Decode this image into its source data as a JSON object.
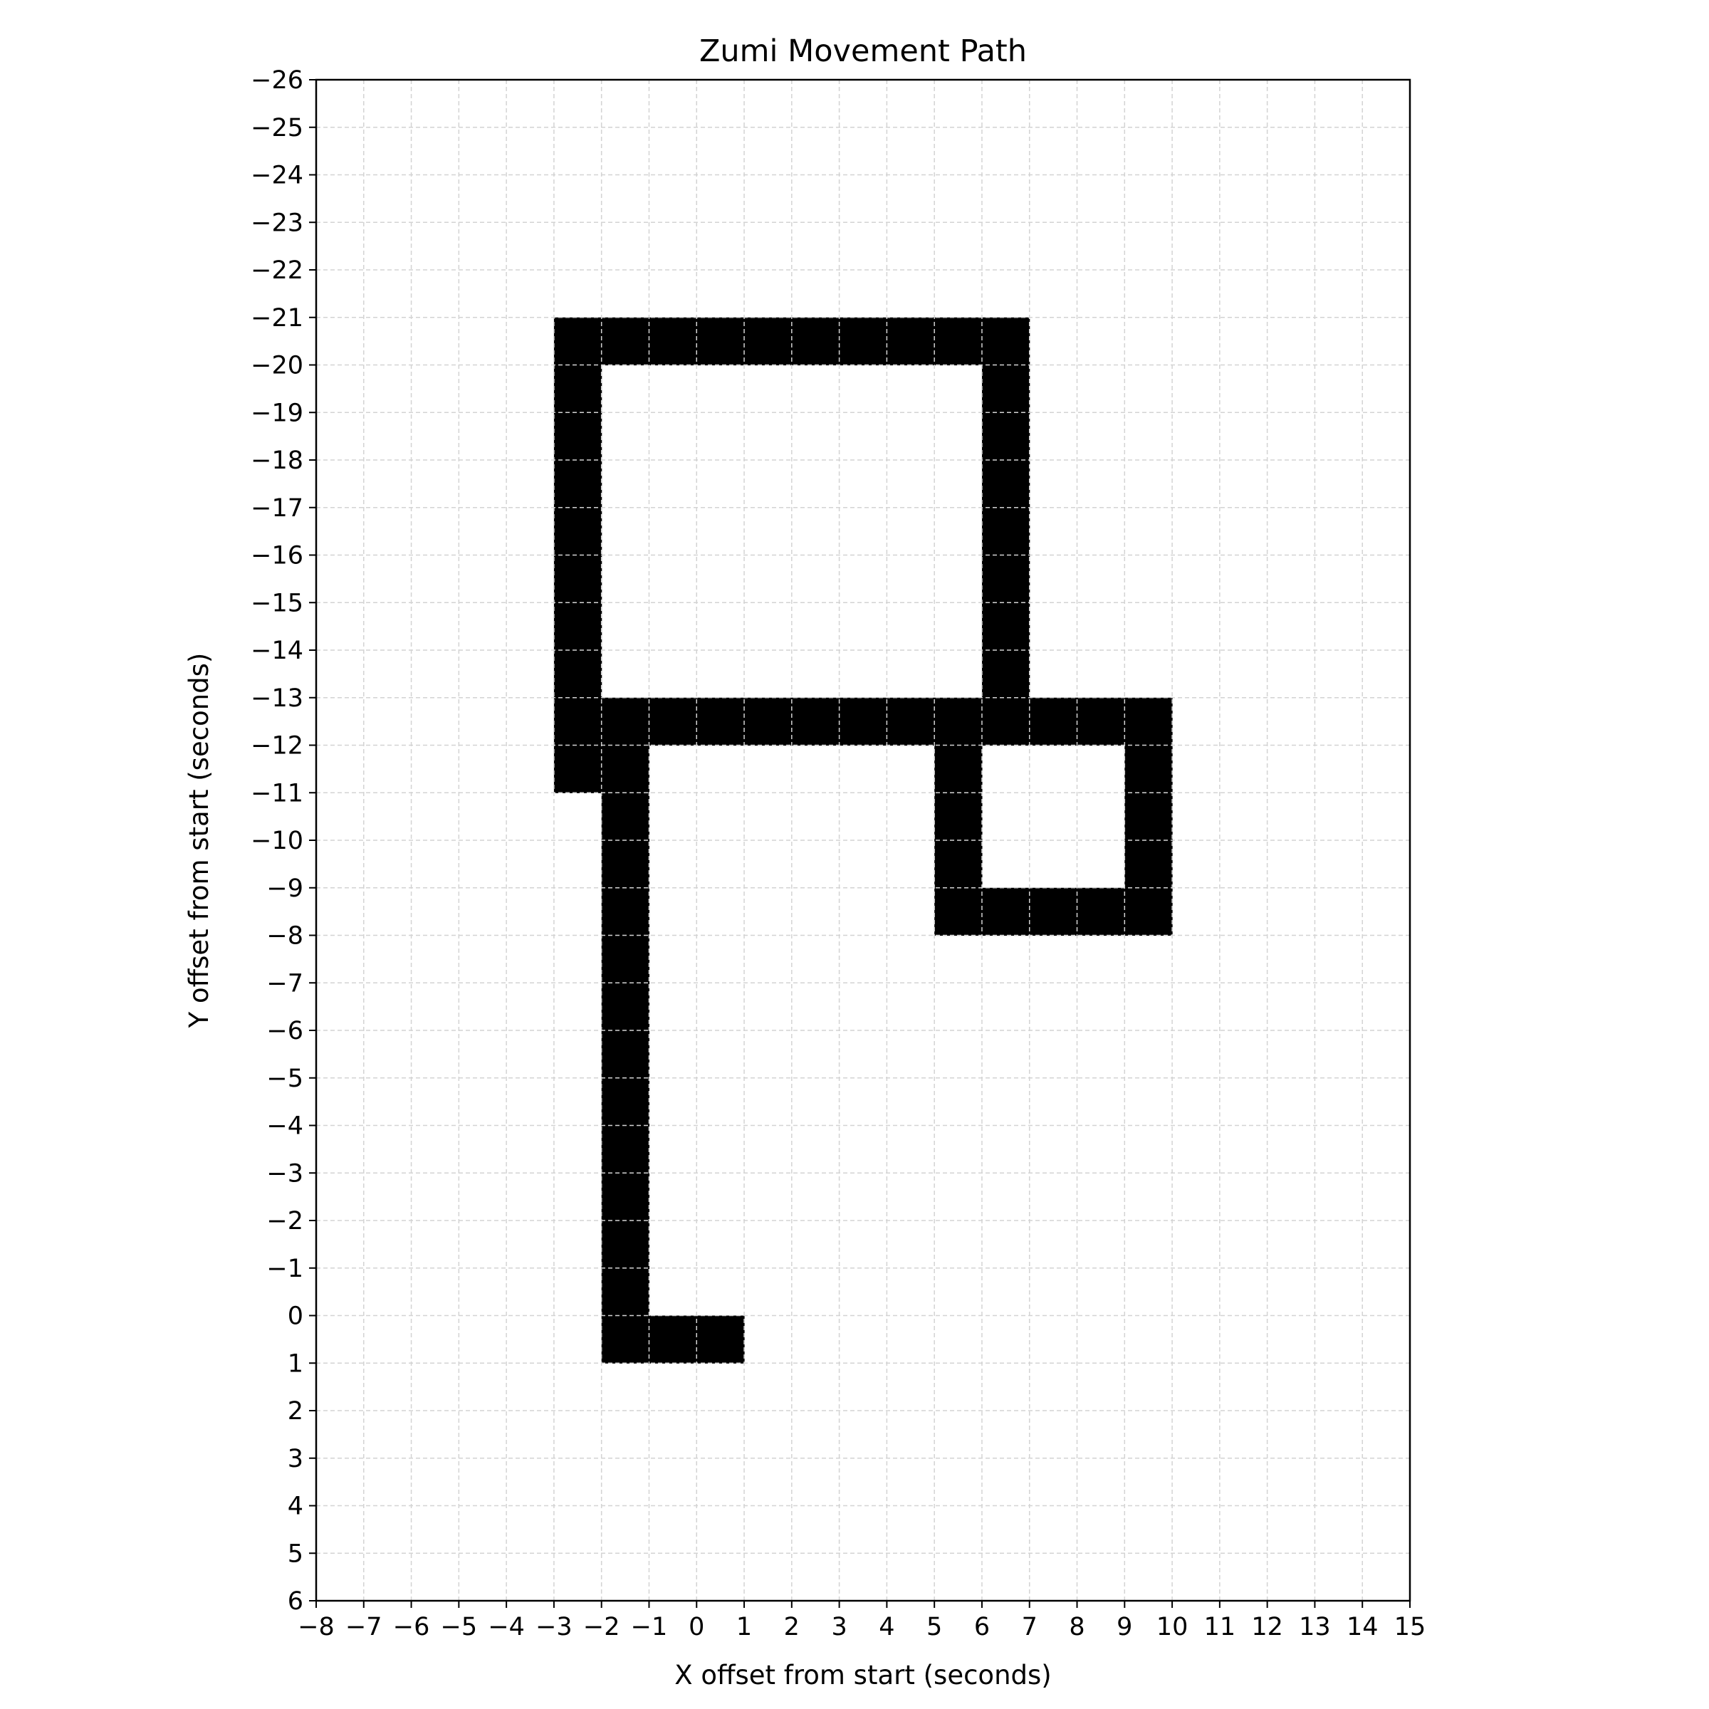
{
  "chart_data": {
    "type": "heatmap",
    "title": "Zumi Movement Path",
    "xlabel": "X offset from start (seconds)",
    "ylabel": "Y offset from start (seconds)",
    "xlim": [
      -8,
      15
    ],
    "ylim": [
      -26,
      6
    ],
    "y_inverted": true,
    "grid": true,
    "xticks": [
      "−8",
      "−7",
      "−6",
      "−5",
      "−4",
      "−3",
      "−2",
      "−1",
      "0",
      "1",
      "2",
      "3",
      "4",
      "5",
      "6",
      "7",
      "8",
      "9",
      "10",
      "11",
      "12",
      "13",
      "14",
      "15"
    ],
    "yticks": [
      "−26",
      "−25",
      "−24",
      "−23",
      "−22",
      "−21",
      "−20",
      "−19",
      "−18",
      "−17",
      "−16",
      "−15",
      "−14",
      "−13",
      "−12",
      "−11",
      "−10",
      "−9",
      "−8",
      "−7",
      "−6",
      "−5",
      "−4",
      "−3",
      "−2",
      "−1",
      "0",
      "1",
      "2",
      "3",
      "4",
      "5",
      "6"
    ],
    "visited_cells": [
      [
        -3,
        -21
      ],
      [
        -2,
        -21
      ],
      [
        -1,
        -21
      ],
      [
        0,
        -21
      ],
      [
        1,
        -21
      ],
      [
        2,
        -21
      ],
      [
        3,
        -21
      ],
      [
        4,
        -21
      ],
      [
        5,
        -21
      ],
      [
        6,
        -21
      ],
      [
        -3,
        -20
      ],
      [
        -3,
        -19
      ],
      [
        -3,
        -18
      ],
      [
        -3,
        -17
      ],
      [
        -3,
        -16
      ],
      [
        -3,
        -15
      ],
      [
        -3,
        -14
      ],
      [
        -3,
        -13
      ],
      [
        -3,
        -12
      ],
      [
        6,
        -20
      ],
      [
        6,
        -19
      ],
      [
        6,
        -18
      ],
      [
        6,
        -17
      ],
      [
        6,
        -16
      ],
      [
        6,
        -15
      ],
      [
        6,
        -14
      ],
      [
        -2,
        -13
      ],
      [
        -1,
        -13
      ],
      [
        0,
        -13
      ],
      [
        1,
        -13
      ],
      [
        2,
        -13
      ],
      [
        3,
        -13
      ],
      [
        4,
        -13
      ],
      [
        5,
        -13
      ],
      [
        6,
        -13
      ],
      [
        7,
        -13
      ],
      [
        8,
        -13
      ],
      [
        9,
        -13
      ],
      [
        -2,
        -12
      ],
      [
        -2,
        -11
      ],
      [
        -2,
        -10
      ],
      [
        -2,
        -9
      ],
      [
        -2,
        -8
      ],
      [
        -2,
        -7
      ],
      [
        -2,
        -6
      ],
      [
        -2,
        -5
      ],
      [
        -2,
        -4
      ],
      [
        -2,
        -3
      ],
      [
        -2,
        -2
      ],
      [
        -2,
        -1
      ],
      [
        -2,
        0
      ],
      [
        -1,
        0
      ],
      [
        0,
        0
      ],
      [
        5,
        -12
      ],
      [
        5,
        -11
      ],
      [
        5,
        -10
      ],
      [
        5,
        -9
      ],
      [
        6,
        -9
      ],
      [
        7,
        -9
      ],
      [
        8,
        -9
      ],
      [
        9,
        -12
      ],
      [
        9,
        -11
      ],
      [
        9,
        -10
      ],
      [
        9,
        -9
      ]
    ],
    "cell_color": "#000000",
    "background_color": "#ffffff",
    "grid_color": "#d3d3d3"
  }
}
